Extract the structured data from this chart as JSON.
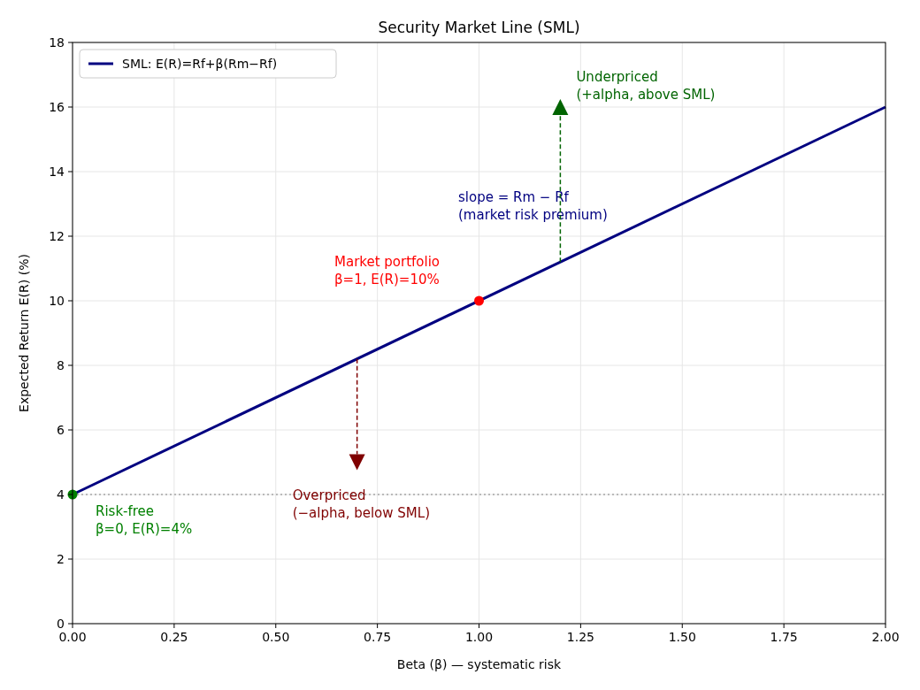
{
  "chart_data": {
    "type": "line",
    "title": "Security Market Line (SML)",
    "xlabel": "Beta (β)  — systematic risk",
    "ylabel": "Expected Return  E(R)  (%)",
    "series": [
      {
        "name": "SML: E(R)=Rf+β(Rm−Rf)",
        "color": "#000080",
        "x": [
          0,
          2
        ],
        "values": [
          4,
          16
        ]
      },
      {
        "type": "scatter",
        "color": "#008000",
        "x": [
          0
        ],
        "values": [
          4
        ]
      },
      {
        "type": "scatter",
        "color": "#ff0000",
        "x": [
          1
        ],
        "values": [
          10
        ]
      }
    ],
    "xlim": [
      0,
      2
    ],
    "ylim": [
      0,
      18
    ],
    "xticks": [
      {
        "value": 0,
        "label": "0.00"
      },
      {
        "value": 0.25,
        "label": "0.25"
      },
      {
        "value": 0.5,
        "label": "0.50"
      },
      {
        "value": 0.75,
        "label": "0.75"
      },
      {
        "value": 1,
        "label": "1.00"
      },
      {
        "value": 1.25,
        "label": "1.25"
      },
      {
        "value": 1.5,
        "label": "1.50"
      },
      {
        "value": 1.75,
        "label": "1.75"
      },
      {
        "value": 2,
        "label": "2.00"
      }
    ],
    "yticks": [
      0,
      2,
      4,
      6,
      8,
      10,
      12,
      14,
      16,
      18
    ],
    "ref_lines": [
      {
        "axis": "y",
        "value": 4,
        "color": "#808080",
        "line_style": "dotted"
      }
    ],
    "annotations": [
      {
        "text": "Risk-free\nβ=0, E(R)=4%",
        "x": 0,
        "y": 4
      },
      "Market portfolio\nβ=1, E(R)=10%",
      "slope = Rm − Rf\n(market risk premium)",
      {
        "text": "Underpriced\n(+alpha, above SML)",
        "x": 1.2,
        "y": 16
      },
      {
        "text": "Overpriced\n(−alpha, below SML)",
        "x": 0.7,
        "y": 5
      }
    ],
    "grid": true,
    "legend": "top left",
    "line_style": "solid"
  }
}
